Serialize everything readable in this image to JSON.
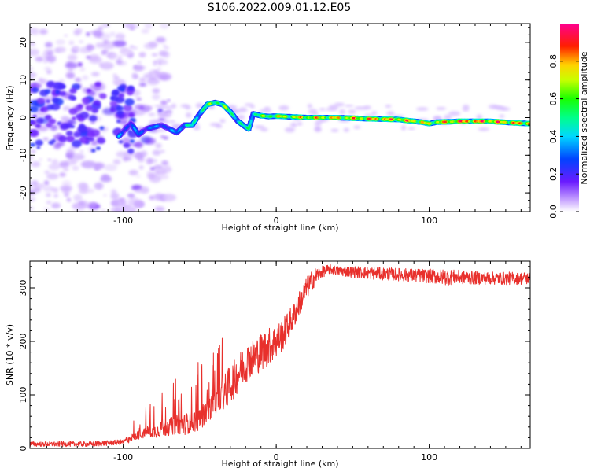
{
  "figure": {
    "title": "S106.2022.009.01.12.E05"
  },
  "chart_data": [
    {
      "type": "heatmap",
      "title": "S106.2022.009.01.12.E05",
      "xlabel": "Height of straight line (km)",
      "ylabel": "Frequency (Hz)",
      "xlim": [
        -161,
        166
      ],
      "ylim": [
        -25,
        25
      ],
      "x_ticks": [
        -100,
        0,
        100
      ],
      "x_tick_labels": [
        "-100",
        "0",
        "100"
      ],
      "y_ticks": [
        -20,
        -10,
        0,
        10,
        20
      ],
      "y_tick_labels": [
        "-20",
        "-10",
        "0",
        "10",
        "20"
      ],
      "colorbar": {
        "label": "Normalized spectral amplitude",
        "range": [
          0,
          1
        ],
        "ticks": [
          0.0,
          0.2,
          0.4,
          0.6,
          0.8
        ],
        "tick_labels": [
          "0.0",
          "0.2",
          "0.4",
          "0.6",
          "0.8"
        ],
        "colormap": "rainbow (white → purple → blue → cyan → green → yellow → red → magenta)"
      },
      "ridge": {
        "description": "Frequency of maximum spectral amplitude vs height",
        "x": [
          -103,
          -95,
          -90,
          -85,
          -80,
          -75,
          -70,
          -65,
          -60,
          -55,
          -50,
          -45,
          -40,
          -35,
          -30,
          -25,
          -20,
          -18,
          -15,
          -10,
          -5,
          0,
          20,
          40,
          60,
          80,
          95,
          100,
          105,
          120,
          140,
          160,
          166
        ],
        "y": [
          -5,
          -1.5,
          -4.5,
          -3,
          -2.5,
          -2,
          -3,
          -4,
          -2,
          -2,
          1,
          3.5,
          4,
          3.5,
          1.5,
          -1,
          -2.5,
          -3,
          1,
          0.5,
          0.3,
          0.4,
          0.0,
          0.0,
          -0.3,
          -0.5,
          -1.2,
          -1.6,
          -1.2,
          -1.0,
          -1.0,
          -1.5,
          -1.6
        ],
        "amplitude": [
          0.35,
          0.3,
          0.35,
          0.3,
          0.35,
          0.35,
          0.3,
          0.4,
          0.45,
          0.5,
          0.55,
          0.6,
          0.7,
          0.65,
          0.6,
          0.55,
          0.5,
          0.55,
          0.6,
          0.65,
          0.7,
          0.75,
          0.8,
          0.8,
          0.85,
          0.9,
          0.8,
          0.75,
          0.8,
          0.9,
          0.9,
          0.85,
          0.95
        ]
      },
      "noise_region": {
        "x_range": [
          -161,
          -90
        ],
        "y_range": [
          -25,
          25
        ],
        "amplitude": "0.05-0.3"
      }
    },
    {
      "type": "line",
      "xlabel": "Height of straight line (km)",
      "ylabel": "SNR (10 * v/v)",
      "xlim": [
        -161,
        166
      ],
      "ylim": [
        0,
        350
      ],
      "x_ticks": [
        -100,
        0,
        100
      ],
      "x_tick_labels": [
        "-100",
        "0",
        "100"
      ],
      "y_ticks": [
        0,
        100,
        200,
        300
      ],
      "y_tick_labels": [
        "0",
        "100",
        "200",
        "300"
      ],
      "series": [
        {
          "color": "#e8302c",
          "x": [
            -161,
            -140,
            -120,
            -100,
            -95,
            -90,
            -85,
            -80,
            -75,
            -70,
            -65,
            -60,
            -55,
            -50,
            -45,
            -40,
            -35,
            -30,
            -25,
            -20,
            -15,
            -10,
            -5,
            0,
            5,
            10,
            15,
            20,
            25,
            30,
            35,
            40,
            50,
            60,
            80,
            100,
            110,
            120,
            140,
            166
          ],
          "values": [
            8,
            8,
            8,
            12,
            20,
            25,
            30,
            32,
            35,
            40,
            45,
            45,
            50,
            55,
            70,
            85,
            100,
            120,
            140,
            160,
            170,
            180,
            190,
            200,
            215,
            240,
            270,
            300,
            320,
            330,
            335,
            332,
            330,
            328,
            325,
            322,
            320,
            320,
            318,
            318
          ],
          "noise_amplitude": [
            8,
            8,
            8,
            8,
            15,
            20,
            25,
            30,
            35,
            40,
            45,
            50,
            50,
            55,
            55,
            55,
            55,
            60,
            60,
            60,
            60,
            60,
            60,
            55,
            50,
            45,
            40,
            35,
            30,
            18,
            15,
            15,
            18,
            20,
            20,
            22,
            25,
            22,
            20,
            20
          ]
        }
      ]
    }
  ]
}
